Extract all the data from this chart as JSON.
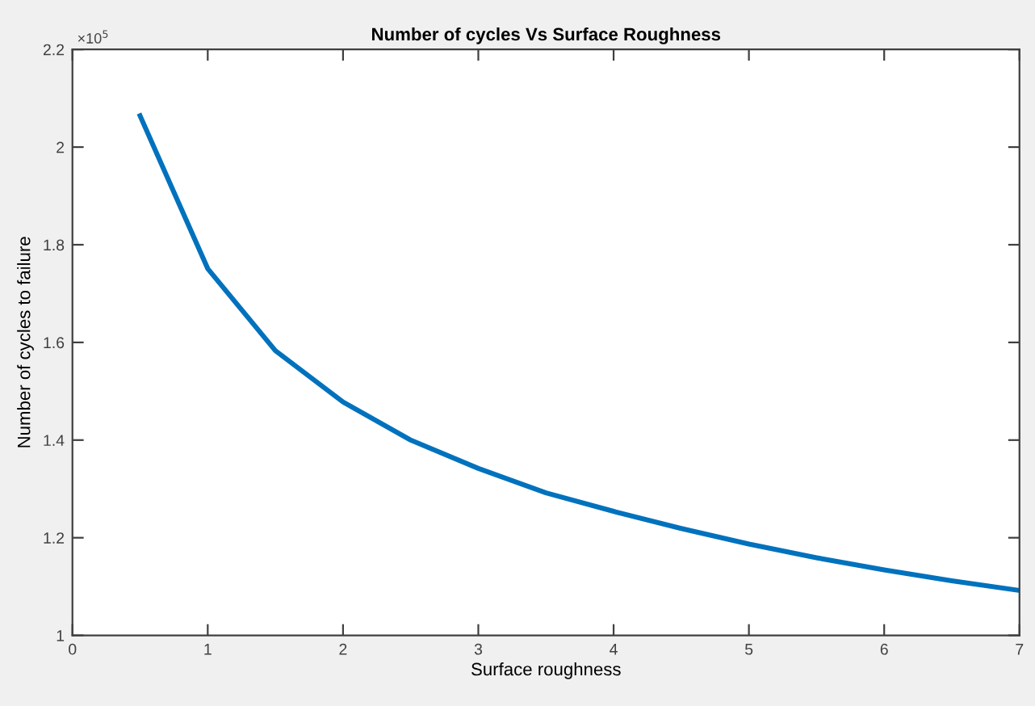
{
  "chart_data": {
    "type": "line",
    "title": "Number of cycles Vs Surface Roughness",
    "xlabel": "Surface roughness",
    "ylabel": "Number of cycles to failure",
    "annotations": [
      "×10$^{5}$"
    ],
    "x": [
      0.5,
      1,
      1.5,
      2,
      2.5,
      3,
      3.5,
      4,
      4.5,
      5,
      5.5,
      6,
      6.5,
      7
    ],
    "series": [
      {
        "color": "#0072bd",
        "values": [
          2.064,
          1.751,
          1.583,
          1.478,
          1.4,
          1.342,
          1.292,
          1.254,
          1.219,
          1.187,
          1.159,
          1.134,
          1.112,
          1.092
        ]
      }
    ],
    "xlim": [
      0,
      7
    ],
    "xticks": [
      0,
      1,
      2,
      3,
      4,
      5,
      6,
      7
    ],
    "ylim": [
      1,
      2.2
    ],
    "yticks": [
      1,
      1.2,
      1.4,
      1.6,
      1.8,
      2,
      2.2
    ],
    "grid": false,
    "marker": "none",
    "line_style": "solid"
  }
}
